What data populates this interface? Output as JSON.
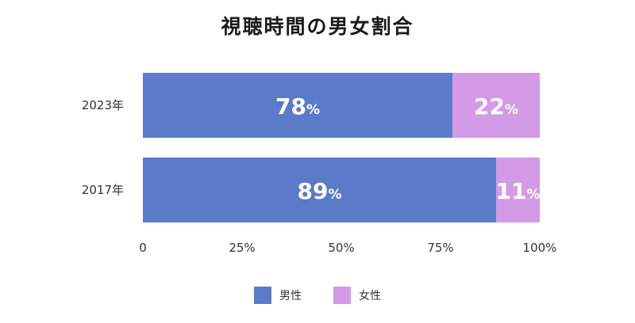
{
  "chart_data": {
    "type": "bar",
    "orientation": "horizontal",
    "stacked": true,
    "title": "視聴時間の男女割合",
    "categories": [
      "2023年",
      "2017年"
    ],
    "series": [
      {
        "name": "男性",
        "values": [
          78,
          89
        ],
        "color": "#5b7bc8"
      },
      {
        "name": "女性",
        "values": [
          22,
          11
        ],
        "color": "#d39ae6"
      }
    ],
    "data_labels": [
      [
        "78",
        "89"
      ],
      [
        "22",
        "11"
      ]
    ],
    "label_unit": "%",
    "xlim": [
      0,
      100
    ],
    "x_ticks": [
      "0",
      "25%",
      "50%",
      "75%",
      "100%"
    ],
    "x_tick_values": [
      0,
      25,
      50,
      75,
      100
    ],
    "legend_position": "bottom",
    "grid": false
  }
}
